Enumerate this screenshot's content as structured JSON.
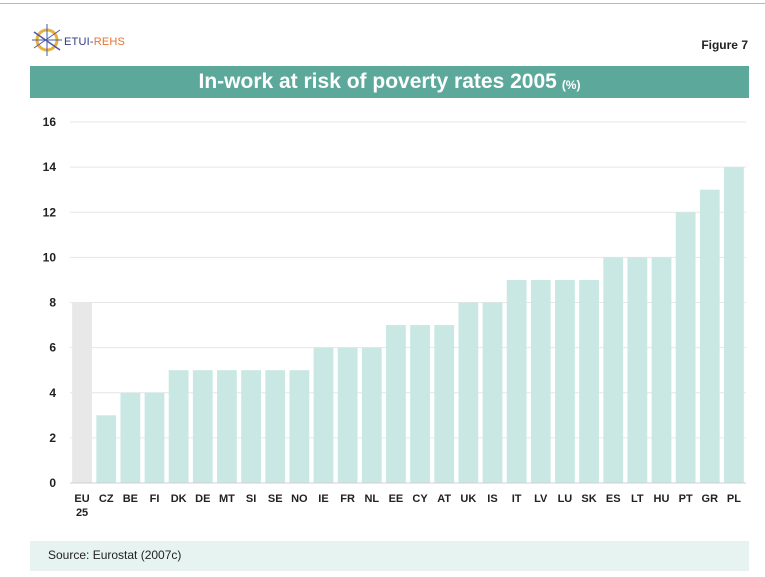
{
  "header": {
    "logo_text_1": "ETUI-",
    "logo_text_2": "REHS",
    "figure_label": "Figure 7",
    "title": "In-work at risk of poverty rates 2005",
    "title_unit": "(%)"
  },
  "source": "Source:  Eurostat (2007c)",
  "colors": {
    "banner": "#5ca99b",
    "bar": "#c9e8e3",
    "highlight_bar": "#e8e8e8",
    "source_bg": "#e6f3f0"
  },
  "chart_data": {
    "type": "bar",
    "title": "In-work at risk of poverty rates 2005 (%)",
    "categories": [
      "EU 25",
      "CZ",
      "BE",
      "FI",
      "DK",
      "DE",
      "MT",
      "SI",
      "SE",
      "NO",
      "IE",
      "FR",
      "NL",
      "EE",
      "CY",
      "AT",
      "UK",
      "IS",
      "IT",
      "LV",
      "LU",
      "SK",
      "ES",
      "LT",
      "HU",
      "PT",
      "GR",
      "PL"
    ],
    "values": [
      8,
      3,
      4,
      4,
      5,
      5,
      5,
      5,
      5,
      5,
      6,
      6,
      6,
      7,
      7,
      7,
      8,
      8,
      9,
      9,
      9,
      9,
      10,
      10,
      10,
      12,
      13,
      14
    ],
    "highlight_category": "EU 25",
    "ylim": [
      0,
      16
    ],
    "yticks": [
      0,
      2,
      4,
      6,
      8,
      10,
      12,
      14,
      16
    ],
    "xlabel": "",
    "ylabel": "",
    "grid": true,
    "legend": "none"
  }
}
